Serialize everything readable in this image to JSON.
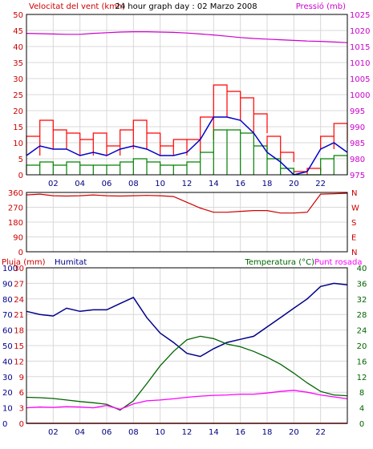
{
  "colors": {
    "axis_left_top": "#cc0000",
    "axis_right_top": "#cc00cc",
    "wind_gust": "#ff0000",
    "wind_avg": "#0000cc",
    "wind_min": "#008000",
    "pressure": "#cc00cc",
    "direction": "#cc0000",
    "rain": "#cc0000",
    "humidity": "#00008b",
    "temperature": "#006400",
    "dewpoint": "#ff00ff",
    "humidity_axis": "#00008b",
    "temp_axis": "#006400",
    "rain_axis": "#cc0000",
    "frame": "#000000",
    "grid": "#d8d8d8"
  },
  "header": {
    "left_label": "Velocitat del vent (kmh)",
    "title": "24 hour graph day : 02 Marzo 2008",
    "right_label": "Pressió (mb)"
  },
  "panel3_header": {
    "rain_label": "Pluja (mm)",
    "humidity_label": "Humitat",
    "temp_label": "Temperatura (°C)",
    "dew_label": "Punt rosada"
  },
  "chart_data": [
    {
      "type": "line",
      "ylabel": "Velocitat del vent (kmh)",
      "ylabel_right": "Pressió (mb)",
      "x_ticks": [
        "02",
        "04",
        "06",
        "08",
        "10",
        "12",
        "14",
        "16",
        "18",
        "20",
        "22"
      ],
      "ylim": [
        0,
        50
      ],
      "y_ticks": [
        0,
        5,
        10,
        15,
        20,
        25,
        30,
        35,
        40,
        45,
        50
      ],
      "y2lim": [
        975,
        1025
      ],
      "y2_ticks": [
        975,
        980,
        985,
        990,
        995,
        1000,
        1005,
        1010,
        1015,
        1020,
        1025
      ],
      "x": [
        0,
        1,
        2,
        3,
        4,
        5,
        6,
        7,
        8,
        9,
        10,
        11,
        12,
        13,
        14,
        15,
        16,
        17,
        18,
        19,
        20,
        21,
        22,
        23,
        24
      ],
      "series": [
        {
          "key": "gust",
          "values": [
            12,
            17,
            14,
            13,
            11,
            13,
            9,
            14,
            17,
            13,
            9,
            11,
            11,
            18,
            28,
            26,
            24,
            19,
            12,
            7,
            1,
            2,
            12,
            16,
            10
          ]
        },
        {
          "key": "avg",
          "values": [
            6,
            9,
            8,
            8,
            6,
            7,
            6,
            8,
            9,
            8,
            6,
            6,
            7,
            11,
            18,
            18,
            17,
            13,
            7,
            4,
            0,
            1,
            8,
            10,
            7
          ]
        },
        {
          "key": "min",
          "values": [
            3,
            4,
            3,
            4,
            3,
            3,
            3,
            4,
            5,
            4,
            3,
            3,
            4,
            7,
            14,
            14,
            13,
            9,
            5,
            2,
            0,
            0,
            5,
            6,
            4
          ]
        },
        {
          "key": "pressure",
          "values": [
            1019.1,
            1019.0,
            1018.9,
            1018.8,
            1018.8,
            1019.1,
            1019.3,
            1019.5,
            1019.6,
            1019.6,
            1019.5,
            1019.4,
            1019.2,
            1018.9,
            1018.6,
            1018.2,
            1017.8,
            1017.5,
            1017.3,
            1017.1,
            1016.9,
            1016.7,
            1016.6,
            1016.4,
            1016.2
          ]
        }
      ],
      "grid": true
    },
    {
      "type": "line",
      "ylim": [
        0,
        360
      ],
      "y_ticks": [
        0,
        90,
        180,
        270,
        360
      ],
      "y_ticks_right": [
        "N",
        "E",
        "S",
        "W",
        "N"
      ],
      "x": [
        0,
        1,
        2,
        3,
        4,
        5,
        6,
        7,
        8,
        9,
        10,
        11,
        12,
        13,
        14,
        15,
        16,
        17,
        18,
        19,
        20,
        21,
        22,
        23,
        24
      ],
      "series": [
        {
          "key": "direction",
          "values": [
            345,
            350,
            340,
            338,
            340,
            345,
            340,
            338,
            340,
            342,
            340,
            335,
            300,
            265,
            240,
            240,
            245,
            250,
            250,
            235,
            235,
            240,
            350,
            352,
            355
          ]
        }
      ],
      "grid": true
    },
    {
      "type": "line",
      "ylim": [
        0,
        100
      ],
      "y_ticks": [
        0,
        10,
        20,
        30,
        40,
        50,
        60,
        70,
        80,
        90,
        100
      ],
      "y_ticks_mid": [
        0,
        3,
        6,
        9,
        12,
        15,
        18,
        21,
        24,
        27,
        30
      ],
      "y_ticks_right": [
        0,
        4,
        8,
        12,
        16,
        20,
        24,
        28,
        32,
        36,
        40
      ],
      "x": [
        0,
        1,
        2,
        3,
        4,
        5,
        6,
        7,
        8,
        9,
        10,
        11,
        12,
        13,
        14,
        15,
        16,
        17,
        18,
        19,
        20,
        21,
        22,
        23,
        24
      ],
      "series": [
        {
          "key": "rain",
          "values": [
            0,
            0,
            0,
            0,
            0,
            0,
            0,
            0,
            0,
            0,
            0,
            0,
            0,
            0,
            0,
            0,
            0,
            0,
            0,
            0,
            0,
            0,
            0,
            0,
            0
          ]
        },
        {
          "key": "humidity",
          "values": [
            72,
            70,
            69,
            74,
            72,
            73,
            73,
            77,
            81,
            68,
            58,
            52,
            45,
            43,
            48,
            52,
            54,
            56,
            62,
            68,
            74,
            80,
            88,
            90,
            89
          ]
        },
        {
          "key": "temperature",
          "values": [
            6.7,
            6.6,
            6.4,
            6.0,
            5.6,
            5.3,
            4.9,
            3.4,
            5.8,
            10.2,
            14.8,
            18.5,
            21.5,
            22.4,
            21.8,
            20.4,
            19.7,
            18.5,
            17.0,
            15.2,
            12.9,
            10.4,
            8.2,
            7.3,
            7.1
          ]
        },
        {
          "key": "dewpoint",
          "values": [
            4.0,
            4.2,
            4.1,
            4.3,
            4.2,
            4.0,
            4.6,
            3.6,
            5.0,
            5.8,
            6.0,
            6.3,
            6.7,
            7.0,
            7.2,
            7.3,
            7.5,
            7.5,
            7.8,
            8.2,
            8.5,
            8.0,
            7.3,
            6.8,
            6.3
          ]
        }
      ],
      "grid": true
    }
  ]
}
